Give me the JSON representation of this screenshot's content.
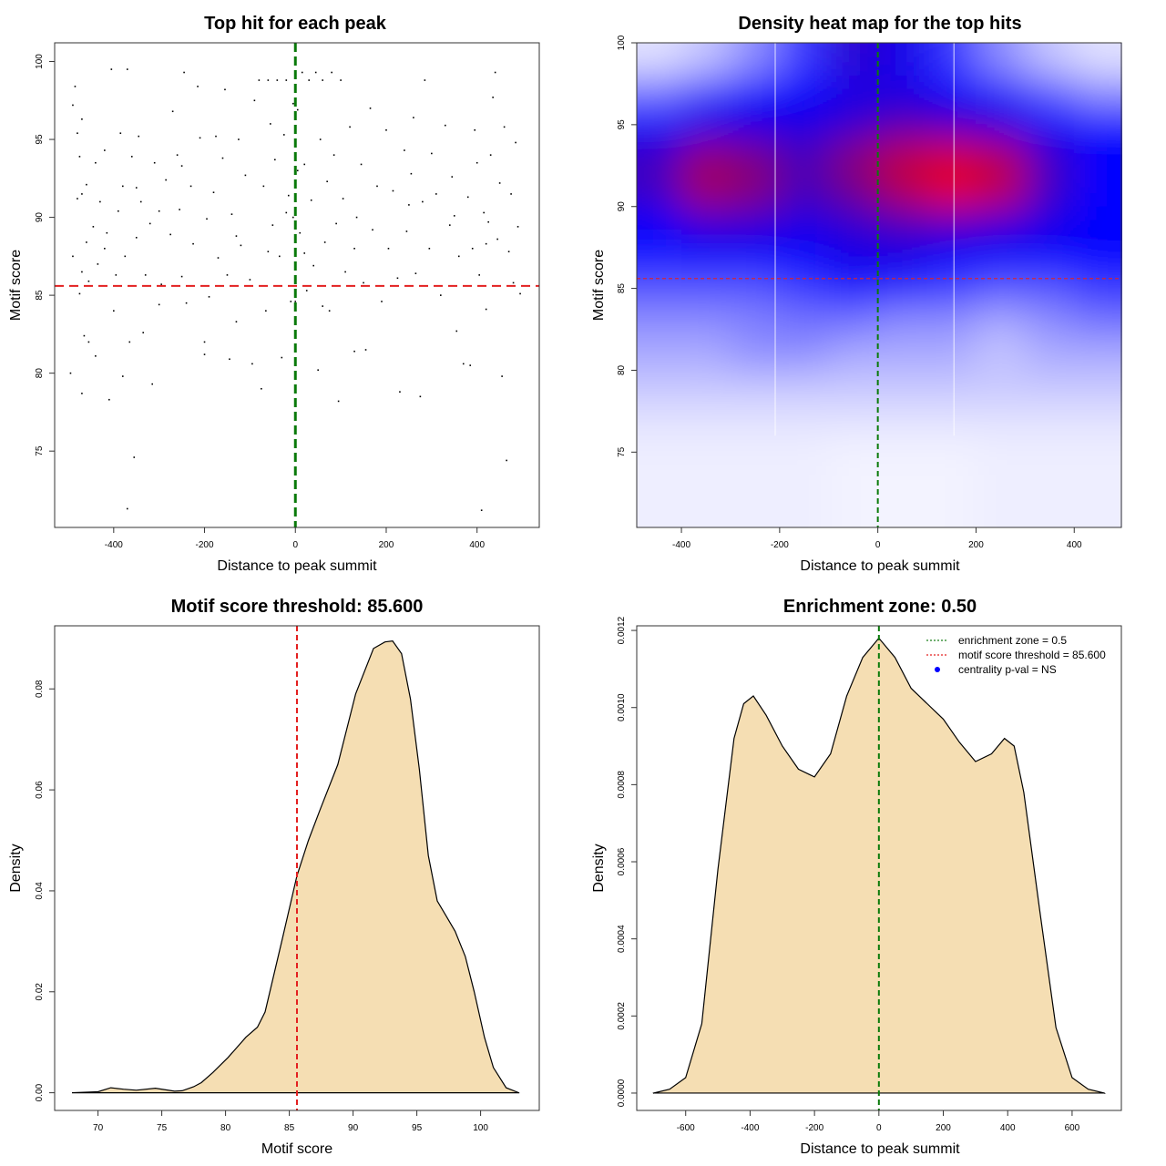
{
  "chart_data": [
    {
      "type": "scatter",
      "title": "Top hit for each peak",
      "xlabel": "Distance to peak summit",
      "ylabel": "Motif score",
      "xlim": [
        -530,
        537
      ],
      "ylim": [
        70.1,
        101.2
      ],
      "xticks": [
        -400,
        -200,
        0,
        200,
        400
      ],
      "yticks": [
        75,
        80,
        85,
        90,
        95,
        100
      ],
      "hlines": [
        {
          "y": 85.6,
          "color": "#e32020",
          "style": "dashed"
        }
      ],
      "vlines": [
        {
          "x": 0,
          "color": "#0a7a0a",
          "style": "dashed"
        }
      ],
      "points": [
        [
          -495,
          80
        ],
        [
          -470,
          78.7
        ],
        [
          -490,
          97.2
        ],
        [
          -485,
          98.4
        ],
        [
          -480,
          95.4
        ],
        [
          -470,
          96.3
        ],
        [
          -475,
          93.9
        ],
        [
          -460,
          92.1
        ],
        [
          -480,
          91.2
        ],
        [
          -470,
          91.5
        ],
        [
          -460,
          88.4
        ],
        [
          -490,
          87.5
        ],
        [
          -470,
          86.5
        ],
        [
          -475,
          85.1
        ],
        [
          -455,
          85.9
        ],
        [
          -465,
          82.4
        ],
        [
          -455,
          82.0
        ],
        [
          -445,
          89.4
        ],
        [
          -440,
          93.5
        ],
        [
          -435,
          87.0
        ],
        [
          -430,
          91.0
        ],
        [
          -420,
          94.3
        ],
        [
          -405,
          99.5
        ],
        [
          -415,
          89.0
        ],
        [
          -410,
          78.3
        ],
        [
          -400,
          84.0
        ],
        [
          -395,
          86.3
        ],
        [
          -390,
          90.4
        ],
        [
          -385,
          95.4
        ],
        [
          -380,
          92.0
        ],
        [
          -375,
          87.5
        ],
        [
          -370,
          71.3
        ],
        [
          -370,
          99.5
        ],
        [
          -365,
          82.0
        ],
        [
          -360,
          93.9
        ],
        [
          -355,
          74.6
        ],
        [
          -350,
          88.7
        ],
        [
          -345,
          95.2
        ],
        [
          -340,
          91.0
        ],
        [
          -335,
          82.6
        ],
        [
          -330,
          86.3
        ],
        [
          -320,
          89.6
        ],
        [
          -315,
          79.3
        ],
        [
          -310,
          93.5
        ],
        [
          -300,
          90.4
        ],
        [
          -295,
          85.7
        ],
        [
          -285,
          92.4
        ],
        [
          -275,
          88.9
        ],
        [
          -270,
          96.8
        ],
        [
          -260,
          94.0
        ],
        [
          -255,
          90.5
        ],
        [
          -250,
          86.2
        ],
        [
          -245,
          99.3
        ],
        [
          -240,
          84.5
        ],
        [
          -230,
          92.0
        ],
        [
          -225,
          88.3
        ],
        [
          -215,
          98.4
        ],
        [
          -210,
          95.1
        ],
        [
          -200,
          82.0
        ],
        [
          -200,
          81.2
        ],
        [
          -195,
          89.9
        ],
        [
          -190,
          84.9
        ],
        [
          -180,
          91.6
        ],
        [
          -175,
          95.2
        ],
        [
          -170,
          87.4
        ],
        [
          -160,
          93.8
        ],
        [
          -155,
          98.2
        ],
        [
          -150,
          86.3
        ],
        [
          -145,
          80.9
        ],
        [
          -140,
          90.2
        ],
        [
          -130,
          83.3
        ],
        [
          -125,
          95.0
        ],
        [
          -120,
          88.2
        ],
        [
          -110,
          92.7
        ],
        [
          -100,
          86.0
        ],
        [
          -95,
          80.6
        ],
        [
          -90,
          97.5
        ],
        [
          -80,
          98.8
        ],
        [
          -75,
          79.0
        ],
        [
          -70,
          92.0
        ],
        [
          -65,
          84.0
        ],
        [
          -60,
          98.8
        ],
        [
          -55,
          96.0
        ],
        [
          -50,
          89.5
        ],
        [
          -45,
          93.7
        ],
        [
          -40,
          98.8
        ],
        [
          -35,
          87.5
        ],
        [
          -30,
          81.0
        ],
        [
          -25,
          95.3
        ],
        [
          -20,
          98.8
        ],
        [
          -15,
          91.4
        ],
        [
          -10,
          84.6
        ],
        [
          -5,
          97.3
        ],
        [
          0,
          100
        ],
        [
          5,
          96.9
        ],
        [
          10,
          89.0
        ],
        [
          15,
          99.3
        ],
        [
          20,
          93.4
        ],
        [
          25,
          85.3
        ],
        [
          30,
          98.8
        ],
        [
          35,
          91.1
        ],
        [
          40,
          86.9
        ],
        [
          45,
          99.3
        ],
        [
          50,
          80.2
        ],
        [
          55,
          95.0
        ],
        [
          60,
          98.8
        ],
        [
          65,
          88.4
        ],
        [
          70,
          92.3
        ],
        [
          75,
          84.0
        ],
        [
          80,
          99.3
        ],
        [
          85,
          94.0
        ],
        [
          90,
          89.6
        ],
        [
          95,
          78.2
        ],
        [
          100,
          98.8
        ],
        [
          105,
          91.2
        ],
        [
          110,
          86.5
        ],
        [
          120,
          95.8
        ],
        [
          130,
          81.4
        ],
        [
          135,
          90.0
        ],
        [
          145,
          93.4
        ],
        [
          150,
          85.8
        ],
        [
          155,
          81.5
        ],
        [
          165,
          97.0
        ],
        [
          170,
          89.2
        ],
        [
          180,
          92.0
        ],
        [
          190,
          84.6
        ],
        [
          200,
          95.6
        ],
        [
          205,
          88.0
        ],
        [
          215,
          91.7
        ],
        [
          225,
          86.1
        ],
        [
          230,
          78.8
        ],
        [
          240,
          94.3
        ],
        [
          245,
          89.1
        ],
        [
          255,
          92.8
        ],
        [
          260,
          96.4
        ],
        [
          265,
          86.4
        ],
        [
          275,
          78.5
        ],
        [
          280,
          91.0
        ],
        [
          285,
          98.8
        ],
        [
          295,
          88.0
        ],
        [
          300,
          94.1
        ],
        [
          310,
          91.5
        ],
        [
          320,
          85.0
        ],
        [
          330,
          95.9
        ],
        [
          340,
          89.5
        ],
        [
          345,
          92.6
        ],
        [
          355,
          82.7
        ],
        [
          360,
          87.5
        ],
        [
          370,
          80.6
        ],
        [
          380,
          91.3
        ],
        [
          385,
          80.5
        ],
        [
          390,
          88.0
        ],
        [
          395,
          95.6
        ],
        [
          400,
          93.5
        ],
        [
          405,
          86.3
        ],
        [
          410,
          71.2
        ],
        [
          415,
          90.3
        ],
        [
          420,
          84.1
        ],
        [
          425,
          89.7
        ],
        [
          430,
          94.0
        ],
        [
          435,
          97.7
        ],
        [
          440,
          99.3
        ],
        [
          445,
          88.6
        ],
        [
          450,
          92.2
        ],
        [
          455,
          79.8
        ],
        [
          460,
          95.8
        ],
        [
          465,
          74.4
        ],
        [
          470,
          87.8
        ],
        [
          475,
          91.5
        ],
        [
          480,
          85.8
        ],
        [
          485,
          94.8
        ],
        [
          490,
          89.4
        ],
        [
          495,
          85.1
        ],
        [
          -440,
          81.1
        ],
        [
          -380,
          79.8
        ],
        [
          -300,
          84.4
        ],
        [
          -60,
          87.8
        ],
        [
          60,
          84.3
        ],
        [
          -130,
          88.8
        ],
        [
          130,
          88.0
        ],
        [
          -20,
          90.3
        ],
        [
          20,
          87.7
        ],
        [
          -250,
          93.3
        ],
        [
          250,
          90.8
        ],
        [
          -350,
          91.9
        ],
        [
          350,
          90.1
        ],
        [
          -420,
          88.0
        ],
        [
          420,
          88.3
        ],
        [
          0,
          84.6
        ],
        [
          -5,
          90.0
        ],
        [
          5,
          93.0
        ]
      ]
    },
    {
      "type": "heatmap",
      "title": "Density heat map for the top hits",
      "xlabel": "Distance to peak summit",
      "ylabel": "Motif score",
      "xlim": [
        -491,
        496
      ],
      "ylim": [
        70.4,
        100
      ],
      "xticks": [
        -400,
        -200,
        0,
        200,
        400
      ],
      "yticks": [
        75,
        80,
        85,
        90,
        95,
        100
      ],
      "colorscale": [
        "#ffffff",
        "#0000ff",
        "#ff0000"
      ],
      "hlines": [
        {
          "y": 85.6,
          "color": "#e32020",
          "style": "dashed"
        }
      ],
      "vlines": [
        {
          "x": 0,
          "color": "#0a7a0a",
          "style": "dashed"
        }
      ],
      "x": [
        -450,
        -350,
        -250,
        -150,
        -50,
        50,
        150,
        250,
        350,
        450
      ],
      "y": [
        99,
        97,
        95,
        93,
        91,
        89,
        87,
        85,
        83,
        81,
        79,
        77,
        75,
        73
      ],
      "z": [
        [
          0.05,
          0.1,
          0.2,
          0.35,
          0.55,
          0.5,
          0.35,
          0.2,
          0.1,
          0.05
        ],
        [
          0.25,
          0.35,
          0.45,
          0.45,
          0.5,
          0.5,
          0.45,
          0.4,
          0.3,
          0.2
        ],
        [
          0.45,
          0.5,
          0.5,
          0.5,
          0.55,
          0.62,
          0.58,
          0.52,
          0.45,
          0.42
        ],
        [
          0.58,
          0.78,
          0.72,
          0.6,
          0.75,
          0.87,
          0.92,
          0.85,
          0.58,
          0.45
        ],
        [
          0.58,
          0.82,
          0.75,
          0.6,
          0.7,
          0.85,
          0.97,
          0.88,
          0.58,
          0.45
        ],
        [
          0.45,
          0.55,
          0.55,
          0.5,
          0.55,
          0.6,
          0.6,
          0.55,
          0.5,
          0.45
        ],
        [
          0.42,
          0.45,
          0.45,
          0.45,
          0.5,
          0.5,
          0.45,
          0.45,
          0.45,
          0.45
        ],
        [
          0.3,
          0.3,
          0.3,
          0.35,
          0.42,
          0.4,
          0.35,
          0.3,
          0.3,
          0.35
        ],
        [
          0.2,
          0.2,
          0.22,
          0.25,
          0.25,
          0.2,
          0.2,
          0.15,
          0.2,
          0.25
        ],
        [
          0.15,
          0.15,
          0.2,
          0.2,
          0.15,
          0.15,
          0.15,
          0.1,
          0.15,
          0.15
        ],
        [
          0.1,
          0.1,
          0.1,
          0.1,
          0.1,
          0.1,
          0.1,
          0.1,
          0.1,
          0.1
        ],
        [
          0.05,
          0.05,
          0.05,
          0.05,
          0.05,
          0.05,
          0.05,
          0.05,
          0.05,
          0.05
        ],
        [
          0.03,
          0.03,
          0.03,
          0.03,
          0.02,
          0.02,
          0.02,
          0.03,
          0.03,
          0.03
        ],
        [
          0.03,
          0.03,
          0.03,
          0.03,
          0.02,
          0.02,
          0.02,
          0.03,
          0.03,
          0.03
        ]
      ]
    },
    {
      "type": "area",
      "title": "Motif score threshold: 85.600",
      "xlabel": "Motif score",
      "ylabel": "Density",
      "xlim": [
        66.6,
        104.6
      ],
      "ylim": [
        -0.0035,
        0.0925
      ],
      "xticks": [
        70,
        75,
        80,
        85,
        90,
        95,
        100
      ],
      "yticks": [
        0,
        0.02,
        0.04,
        0.06,
        0.08
      ],
      "ytick_labels": [
        "0.00",
        "0.02",
        "0.04",
        "0.06",
        "0.08"
      ],
      "fill": "#f5deb3",
      "vlines": [
        {
          "x": 85.6,
          "color": "#e32020",
          "style": "dashed"
        }
      ],
      "x": [
        68,
        70,
        71,
        72,
        73,
        74.5,
        76,
        76.6,
        77.5,
        78.1,
        79,
        80.2,
        81.6,
        82.5,
        83.1,
        84.5,
        85.6,
        86.5,
        87.4,
        88.8,
        90.2,
        91.6,
        92.5,
        93.1,
        93.8,
        94.5,
        95.2,
        95.9,
        96.6,
        97.3,
        98,
        98.8,
        99.5,
        100.3,
        101,
        102,
        103
      ],
      "y": [
        0,
        0.0002,
        0.001,
        0.0007,
        0.0005,
        0.0009,
        0.0003,
        0.0004,
        0.0012,
        0.002,
        0.004,
        0.007,
        0.011,
        0.013,
        0.016,
        0.031,
        0.043,
        0.05,
        0.056,
        0.065,
        0.079,
        0.088,
        0.0893,
        0.0895,
        0.087,
        0.078,
        0.064,
        0.047,
        0.038,
        0.035,
        0.032,
        0.027,
        0.02,
        0.011,
        0.005,
        0.001,
        0
      ]
    },
    {
      "type": "area",
      "title": "Enrichment zone: 0.50",
      "xlabel": "Distance to peak summit",
      "ylabel": "Density",
      "xlim": [
        -752,
        753
      ],
      "ylim": [
        -4.5e-05,
        0.001212
      ],
      "xticks": [
        -600,
        -400,
        -200,
        0,
        200,
        400,
        600
      ],
      "yticks": [
        0,
        0.0002,
        0.0004,
        0.0006,
        0.0008,
        0.001,
        0.0012
      ],
      "ytick_labels": [
        "0.0000",
        "0.0002",
        "0.0004",
        "0.0006",
        "0.0008",
        "0.0010",
        "0.0012"
      ],
      "fill": "#f5deb3",
      "vlines": [
        {
          "x": 0,
          "color": "#0a7a0a",
          "style": "dashed"
        }
      ],
      "x": [
        -700,
        -650,
        -600,
        -550,
        -500,
        -450,
        -420,
        -390,
        -350,
        -300,
        -250,
        -200,
        -150,
        -100,
        -50,
        0,
        50,
        100,
        150,
        200,
        250,
        300,
        350,
        390,
        420,
        450,
        500,
        550,
        600,
        650,
        700
      ],
      "y": [
        0,
        1e-05,
        4e-05,
        0.00018,
        0.00058,
        0.00092,
        0.00101,
        0.00103,
        0.00098,
        0.0009,
        0.00084,
        0.00082,
        0.00088,
        0.00103,
        0.00113,
        0.00118,
        0.00113,
        0.00105,
        0.00101,
        0.00097,
        0.00091,
        0.00086,
        0.00088,
        0.00092,
        0.0009,
        0.00078,
        0.00047,
        0.00017,
        4e-05,
        1e-05,
        0
      ],
      "legend": {
        "position": "top-right",
        "items": [
          {
            "label": "enrichment zone = 0.5",
            "color": "#1a7f1a",
            "symbol": "dotted-line"
          },
          {
            "label": "motif score threshold = 85.600",
            "color": "#e32020",
            "symbol": "dotted-line"
          },
          {
            "label": "centrality p-val = NS",
            "color": "#0000ff",
            "symbol": "dot"
          }
        ]
      }
    }
  ]
}
